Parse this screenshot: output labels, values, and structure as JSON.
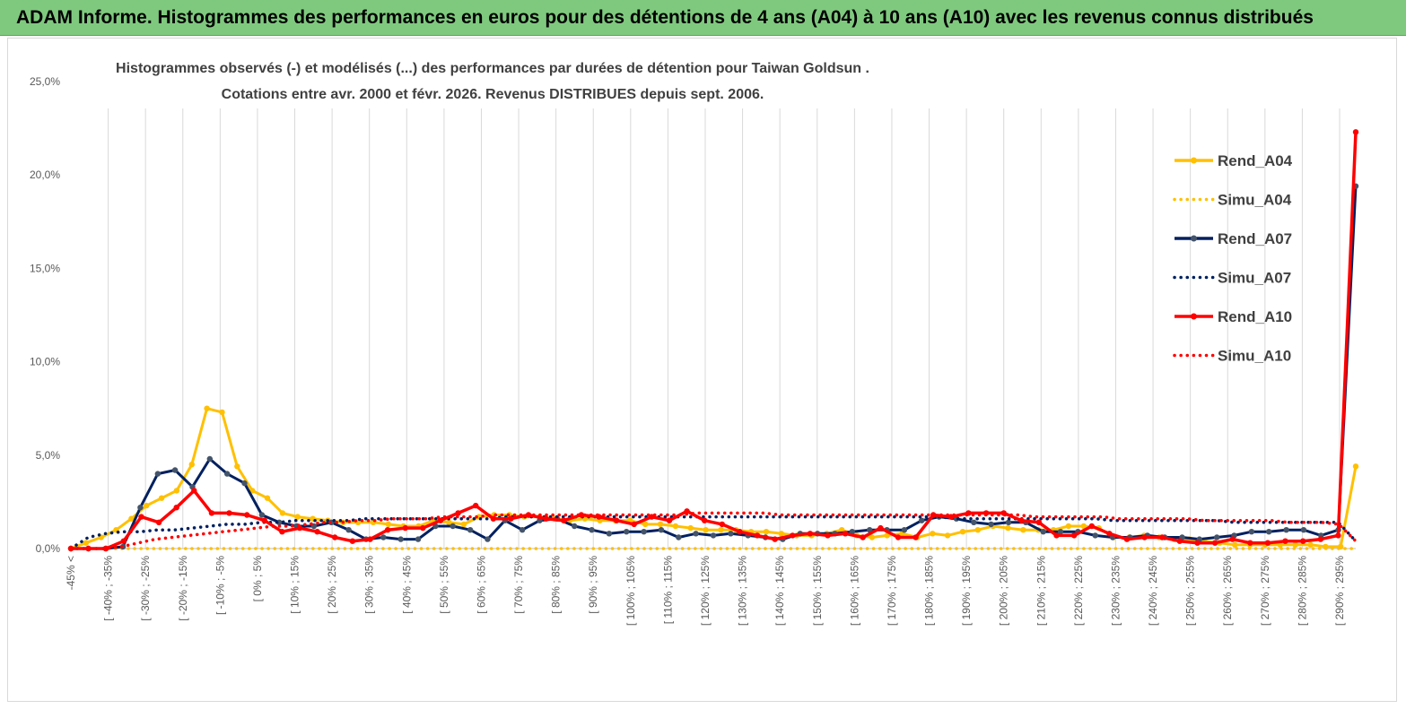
{
  "banner": {
    "title": "ADAM Informe. Histogrammes des performances en euros pour des détentions de 4 ans (A04) à 10 ans (A10) avec les revenus connus distribués"
  },
  "colors": {
    "banner_bg": "#7fc97f",
    "A04": "#ffc000",
    "A07": "#002060",
    "A10": "#ff0000"
  },
  "chart_data": {
    "type": "line",
    "title": "Histogrammes observés (-) et modélisés (...) des performances par durées de détention pour Taiwan Goldsun .",
    "subtitle": "Cotations entre avr. 2000 et févr. 2026. Revenus DISTRIBUES depuis sept. 2006.",
    "ylim": [
      0,
      25
    ],
    "y_ticks": [
      0,
      5,
      10,
      15,
      20,
      25
    ],
    "y_tick_labels": [
      "0,0%",
      "5,0%",
      "10,0%",
      "15,0%",
      "20,0%",
      "25,0%"
    ],
    "x_tick_labels": [
      "-45% <",
      "[ -40% ; -35%",
      "[ -30% ; -25%",
      "[ -20% ; -15%",
      "[ -10% ; -5%",
      "[ 0% ; 5%",
      "[ 10% ; 15%",
      "[ 20% ; 25%",
      "[ 30% ; 35%",
      "[ 40% ; 45%",
      "[ 50% ; 55%",
      "[ 60% ; 65%",
      "[ 70% ; 75%",
      "[ 80% ; 85%",
      "[ 90% ; 95%",
      "[ 100% ; 105%",
      "[ 110% ; 115%",
      "[ 120% ; 125%",
      "[ 130% ; 135%",
      "[ 140% ; 145%",
      "[ 150% ; 155%",
      "[ 160% ; 165%",
      "[ 170% ; 175%",
      "[ 180% ; 185%",
      "[ 190% ; 195%",
      "[ 200% ; 205%",
      "[ 210% ; 215%",
      "[ 220% ; 225%",
      "[ 230% ; 235%",
      "[ 240% ; 245%",
      "[ 250% ; 255%",
      "[ 260% ; 265%",
      "[ 270% ; 275%",
      "[ 280% ; 285%",
      "[ 290% ; 295%"
    ],
    "grid": "vertical",
    "legend_position": "right",
    "series": [
      {
        "name": "Rend_A04",
        "color": "#ffc000",
        "style": "solid",
        "markers": true,
        "values": [
          0.0,
          0.3,
          0.6,
          1.0,
          1.6,
          2.3,
          2.7,
          3.1,
          4.5,
          7.5,
          7.3,
          4.4,
          3.1,
          2.7,
          1.9,
          1.7,
          1.6,
          1.5,
          1.4,
          1.4,
          1.4,
          1.3,
          1.2,
          1.2,
          1.5,
          1.4,
          1.3,
          1.7,
          1.8,
          1.8,
          1.7,
          1.7,
          1.6,
          1.5,
          1.6,
          1.5,
          1.5,
          1.5,
          1.3,
          1.3,
          1.2,
          1.1,
          1.0,
          1.0,
          1.0,
          0.9,
          0.9,
          0.8,
          0.7,
          0.7,
          0.8,
          1.0,
          0.7,
          0.6,
          0.7,
          0.8,
          0.6,
          0.8,
          0.7,
          0.9,
          1.0,
          1.2,
          1.1,
          1.0,
          1.0,
          1.0,
          1.2,
          1.2,
          1.1,
          0.6,
          0.6,
          0.7,
          0.6,
          0.5,
          0.5,
          0.4,
          0.3,
          0.2,
          0.2,
          0.2,
          0.2,
          0.2,
          0.2,
          0.1,
          0.1,
          4.4
        ]
      },
      {
        "name": "Simu_A04",
        "color": "#ffc000",
        "style": "dotted",
        "markers": false,
        "values": [
          0.0,
          0.0,
          0.0,
          0.0,
          0.0,
          0.0,
          0.0,
          0.0,
          0.0,
          0.0,
          0.0,
          0.0,
          0.0,
          0.0,
          0.0,
          0.0,
          0.0,
          0.0,
          0.0,
          0.0,
          0.0,
          0.0,
          0.0,
          0.0,
          0.0,
          0.0,
          0.0,
          0.0,
          0.0,
          0.0,
          0.0,
          0.0,
          0.0,
          0.0,
          0.0,
          0.0,
          0.0,
          0.0,
          0.0,
          0.0,
          0.0,
          0.0,
          0.0,
          0.0,
          0.0,
          0.0,
          0.0,
          0.0,
          0.0,
          0.0,
          0.0,
          0.0,
          0.0,
          0.0,
          0.0,
          0.0,
          0.0,
          0.0,
          0.0,
          0.0,
          0.0,
          0.0,
          0.0,
          0.0,
          0.0,
          0.0,
          0.0,
          0.0,
          0.0,
          0.0,
          0.0,
          0.0,
          0.0,
          0.0,
          0.0,
          0.0,
          0.0,
          0.0,
          0.0,
          0.0,
          0.0,
          0.0,
          0.0,
          0.0,
          0.0,
          0.0
        ]
      },
      {
        "name": "Rend_A07",
        "color": "#002060",
        "style": "solid",
        "markers": true,
        "values": [
          0.0,
          0.0,
          0.0,
          0.1,
          2.2,
          4.0,
          4.2,
          3.3,
          4.8,
          4.0,
          3.5,
          1.8,
          1.4,
          1.2,
          1.2,
          1.4,
          1.0,
          0.5,
          0.6,
          0.5,
          0.5,
          1.2,
          1.2,
          1.0,
          0.5,
          1.5,
          1.0,
          1.5,
          1.6,
          1.2,
          1.0,
          0.8,
          0.9,
          0.9,
          1.0,
          0.6,
          0.8,
          0.7,
          0.8,
          0.7,
          0.6,
          0.5,
          0.8,
          0.8,
          0.8,
          0.9,
          1.0,
          1.0,
          1.0,
          1.5,
          1.7,
          1.6,
          1.4,
          1.3,
          1.4,
          1.4,
          0.9,
          0.9,
          0.9,
          0.7,
          0.6,
          0.6,
          0.7,
          0.6,
          0.6,
          0.5,
          0.6,
          0.7,
          0.9,
          0.9,
          1.0,
          1.0,
          0.7,
          1.0,
          19.4
        ]
      },
      {
        "name": "Simu_A07",
        "color": "#002060",
        "style": "dotted",
        "markers": false,
        "values": [
          0.0,
          0.6,
          0.8,
          0.9,
          0.9,
          1.0,
          1.0,
          1.1,
          1.2,
          1.3,
          1.3,
          1.4,
          1.4,
          1.5,
          1.5,
          1.5,
          1.5,
          1.6,
          1.6,
          1.6,
          1.6,
          1.6,
          1.6,
          1.6,
          1.6,
          1.7,
          1.7,
          1.7,
          1.7,
          1.7,
          1.7,
          1.7,
          1.7,
          1.7,
          1.7,
          1.7,
          1.7,
          1.7,
          1.7,
          1.7,
          1.7,
          1.7,
          1.7,
          1.7,
          1.7,
          1.7,
          1.7,
          1.7,
          1.7,
          1.7,
          1.7,
          1.6,
          1.6,
          1.6,
          1.6,
          1.6,
          1.6,
          1.6,
          1.6,
          1.6,
          1.5,
          1.5,
          1.5,
          1.5,
          1.5,
          1.5,
          1.5,
          1.4,
          1.4,
          1.4,
          1.4,
          1.4,
          1.4,
          1.4,
          0.4
        ]
      },
      {
        "name": "Rend_A10",
        "color": "#ff0000",
        "style": "solid",
        "markers": true,
        "values": [
          0.0,
          0.0,
          0.0,
          0.4,
          1.7,
          1.4,
          2.2,
          3.1,
          1.9,
          1.9,
          1.8,
          1.5,
          0.9,
          1.1,
          0.9,
          0.6,
          0.4,
          0.5,
          1.0,
          1.1,
          1.1,
          1.5,
          1.9,
          2.3,
          1.6,
          1.6,
          1.8,
          1.6,
          1.5,
          1.8,
          1.7,
          1.5,
          1.3,
          1.7,
          1.5,
          2.0,
          1.5,
          1.3,
          0.9,
          0.7,
          0.5,
          0.7,
          0.8,
          0.7,
          0.8,
          0.6,
          1.1,
          0.6,
          0.6,
          1.8,
          1.7,
          1.9,
          1.9,
          1.9,
          1.5,
          1.4,
          0.7,
          0.7,
          1.2,
          0.8,
          0.5,
          0.6,
          0.6,
          0.4,
          0.3,
          0.3,
          0.5,
          0.3,
          0.3,
          0.4,
          0.4,
          0.5,
          0.7,
          22.3
        ]
      },
      {
        "name": "Simu_A10",
        "color": "#ff0000",
        "style": "dotted",
        "markers": false,
        "values": [
          0.0,
          0.0,
          0.0,
          0.1,
          0.3,
          0.5,
          0.6,
          0.7,
          0.8,
          0.9,
          1.0,
          1.1,
          1.2,
          1.2,
          1.3,
          1.4,
          1.4,
          1.5,
          1.5,
          1.6,
          1.6,
          1.6,
          1.7,
          1.7,
          1.7,
          1.8,
          1.8,
          1.8,
          1.8,
          1.8,
          1.8,
          1.8,
          1.8,
          1.8,
          1.8,
          1.8,
          1.8,
          1.9,
          1.9,
          1.9,
          1.9,
          1.9,
          1.8,
          1.8,
          1.8,
          1.8,
          1.8,
          1.8,
          1.8,
          1.8,
          1.8,
          1.8,
          1.8,
          1.8,
          1.8,
          1.8,
          1.8,
          1.7,
          1.7,
          1.7,
          1.7,
          1.7,
          1.6,
          1.6,
          1.6,
          1.6,
          1.6,
          1.5,
          1.5,
          1.5,
          1.5,
          1.5,
          1.4,
          1.4,
          1.4,
          1.3,
          0.4
        ]
      }
    ]
  }
}
